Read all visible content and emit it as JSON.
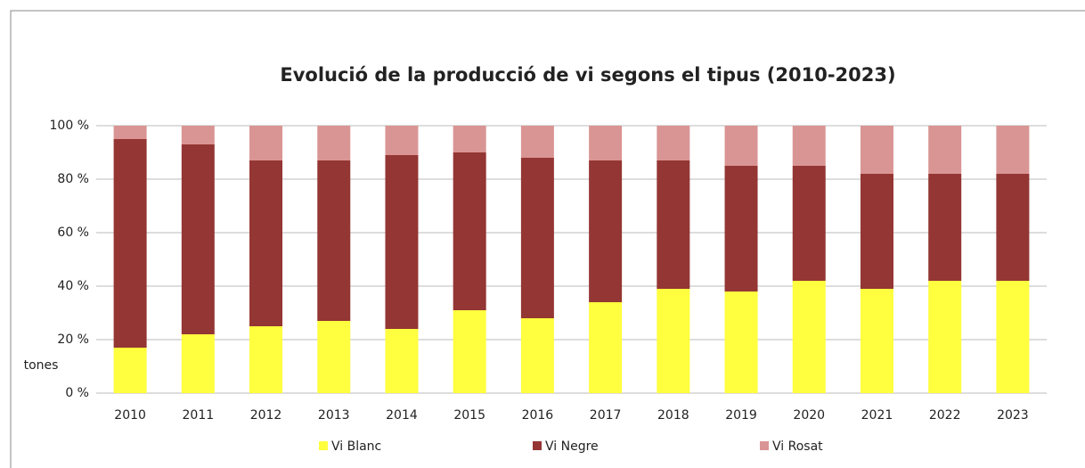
{
  "chart_data": {
    "type": "stacked_bar",
    "title": "Evolució de la producció de vi segons el tipus (2010-2023)",
    "y_label": "tones",
    "categories": [
      "2010",
      "2011",
      "2012",
      "2013",
      "2014",
      "2015",
      "2016",
      "2017",
      "2018",
      "2019",
      "2020",
      "2021",
      "2022",
      "2023"
    ],
    "series": [
      {
        "name": "Vi Blanc",
        "color": "#ffff3f",
        "values": [
          17,
          22,
          25,
          27,
          24,
          31,
          28,
          34,
          39,
          38,
          42,
          39,
          42,
          42
        ]
      },
      {
        "name": "Vi Negre",
        "color": "#943634",
        "values": [
          78,
          71,
          62,
          60,
          65,
          59,
          60,
          53,
          48,
          47,
          43,
          43,
          40,
          40
        ]
      },
      {
        "name": "Vi Rosat",
        "color": "#d99594",
        "values": [
          5,
          7,
          13,
          13,
          11,
          10,
          12,
          13,
          13,
          15,
          15,
          18,
          18,
          18
        ]
      }
    ],
    "ylim": [
      0,
      100
    ],
    "yticks": [
      {
        "value": 0,
        "label": "0 %"
      },
      {
        "value": 20,
        "label": "20 %"
      },
      {
        "value": 40,
        "label": "40 %"
      },
      {
        "value": 60,
        "label": "60 %"
      },
      {
        "value": 80,
        "label": "80 %"
      },
      {
        "value": 100,
        "label": "100 %"
      }
    ],
    "grid": true,
    "legend": "bottom"
  }
}
